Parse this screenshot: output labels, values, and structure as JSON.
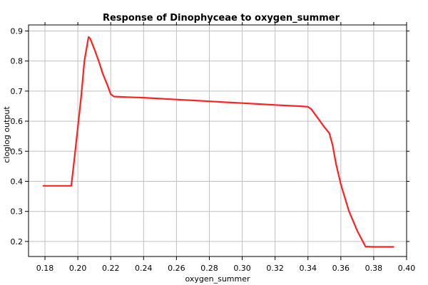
{
  "chart_data": {
    "type": "line",
    "title": "Response of Dinophyceae to oxygen_summer",
    "xlabel": "oxygen_summer",
    "ylabel": "cloglog output",
    "xlim": [
      0.17,
      0.4
    ],
    "ylim": [
      0.15,
      0.92
    ],
    "xticks": [
      0.18,
      0.2,
      0.22,
      0.24,
      0.26,
      0.28,
      0.3,
      0.32,
      0.34,
      0.36,
      0.38,
      0.4
    ],
    "xtick_labels": [
      "0.18",
      "0.20",
      "0.22",
      "0.24",
      "0.26",
      "0.28",
      "0.30",
      "0.32",
      "0.34",
      "0.36",
      "0.38",
      "0.40"
    ],
    "yticks": [
      0.2,
      0.3,
      0.4,
      0.5,
      0.6,
      0.7,
      0.8,
      0.9
    ],
    "ytick_labels": [
      "0.2",
      "0.3",
      "0.4",
      "0.5",
      "0.6",
      "0.7",
      "0.8",
      "0.9"
    ],
    "grid": true,
    "line_color": "#ff2020",
    "grid_color": "#c0c0c0",
    "series": [
      {
        "x": [
          0.179,
          0.196,
          0.198,
          0.2,
          0.202,
          0.204,
          0.2065,
          0.2075,
          0.21,
          0.213,
          0.215,
          0.218,
          0.22,
          0.222,
          0.23,
          0.24,
          0.25,
          0.26,
          0.27,
          0.28,
          0.29,
          0.3,
          0.31,
          0.32,
          0.33,
          0.335,
          0.34,
          0.342,
          0.346,
          0.35,
          0.353,
          0.355,
          0.357,
          0.36,
          0.365,
          0.37,
          0.375,
          0.38,
          0.385,
          0.392
        ],
        "y": [
          0.385,
          0.385,
          0.48,
          0.58,
          0.68,
          0.8,
          0.88,
          0.875,
          0.84,
          0.795,
          0.76,
          0.72,
          0.69,
          0.682,
          0.68,
          0.678,
          0.675,
          0.672,
          0.669,
          0.666,
          0.663,
          0.66,
          0.657,
          0.654,
          0.651,
          0.65,
          0.648,
          0.64,
          0.61,
          0.58,
          0.56,
          0.52,
          0.46,
          0.39,
          0.3,
          0.235,
          0.183,
          0.182,
          0.182,
          0.182
        ]
      }
    ]
  }
}
